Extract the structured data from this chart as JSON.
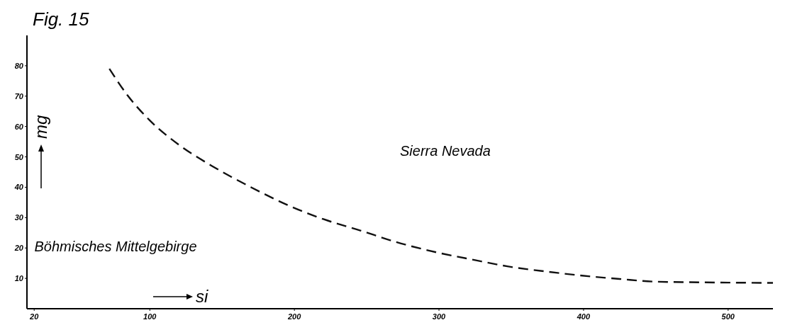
{
  "chart_data": {
    "type": "line",
    "title": "Fig. 15",
    "xlabel": "si",
    "ylabel": "mg",
    "x": [
      72,
      85,
      100,
      120,
      143,
      170,
      196,
      220,
      246,
      270,
      298,
      325,
      348,
      375,
      399,
      425,
      450,
      480,
      500,
      531
    ],
    "series": [
      {
        "color": "#111111",
        "values": [
          79,
          70,
          62,
          54,
          47,
          40,
          34,
          29.5,
          25.7,
          22,
          18.6,
          16,
          13.9,
          12.2,
          10.9,
          9.8,
          8.9,
          8.7,
          8.6,
          8.5
        ]
      }
    ],
    "xlim": [
      15,
      531
    ],
    "ylim": [
      0,
      90
    ],
    "xticks": [
      20,
      100,
      200,
      300,
      400,
      500
    ],
    "yticks": [
      10,
      20,
      30,
      40,
      50,
      60,
      70,
      80
    ],
    "line_style": "dashed",
    "marker": "none",
    "grid": false,
    "annotations": [
      "Sierra Nevada",
      "Böhmisches Mittelgebirge"
    ]
  }
}
